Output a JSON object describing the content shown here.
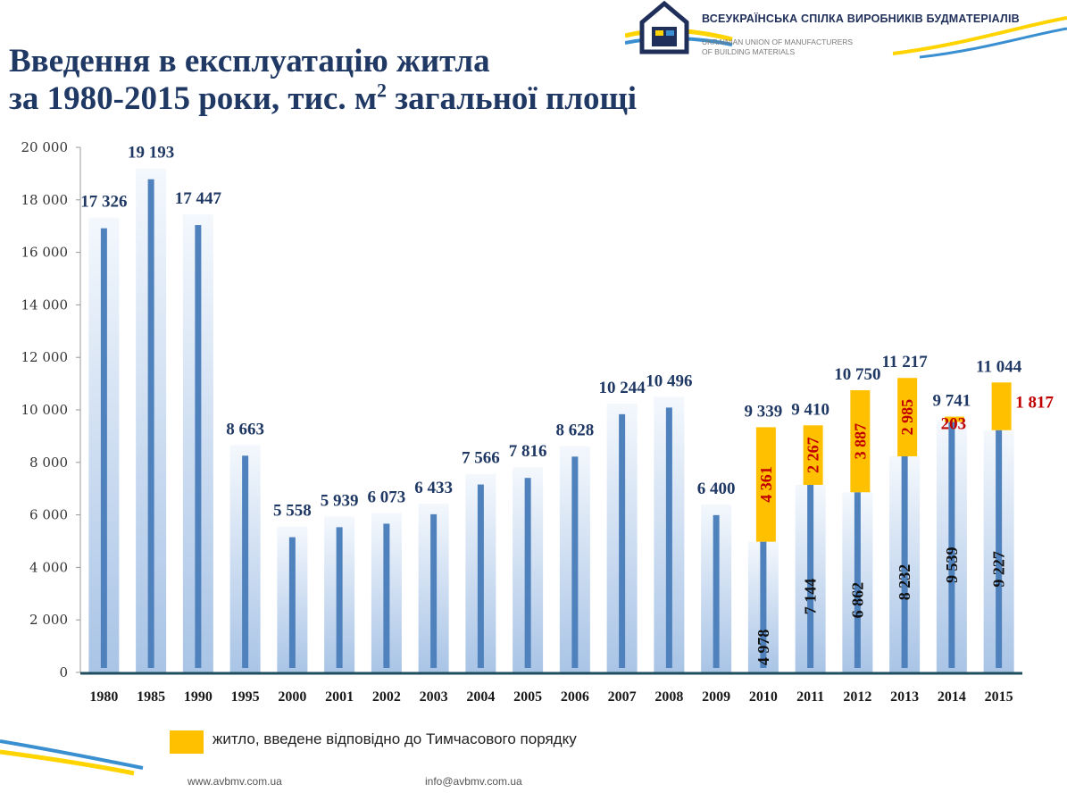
{
  "header": {
    "title_line1": "Введення в експлуатацію житла",
    "title_line2": "за 1980-2015 роки, тис. м",
    "title_sup": "2",
    "title_line2_tail": " загальної площі",
    "org_name_ua": "ВСЕУКРАЇНСЬКА СПІЛКА ВИРОБНИКІВ БУДМАТЕРІАЛІВ",
    "org_name_en_1": "UKRAINIAN UNION OF MANUFACTURERS",
    "org_name_en_2": "OF BUILDING MATERIALS"
  },
  "legend": {
    "label": "житло, введене відповідно до Тимчасового порядку"
  },
  "footer": {
    "website": "www.avbmv.com.ua",
    "email": "info@avbmv.com.ua"
  },
  "colors": {
    "title": "#1f3864",
    "bar_dark": "#4f81bd",
    "bar_light": "#c6d9f1",
    "highlight": "#ffc000",
    "red_label": "#c00000",
    "axis": "#1f4e5e"
  },
  "chart_data": {
    "type": "bar",
    "categories": [
      "1980",
      "1985",
      "1990",
      "1995",
      "2000",
      "2001",
      "2002",
      "2003",
      "2004",
      "2005",
      "2006",
      "2007",
      "2008",
      "2009",
      "2010",
      "2011",
      "2012",
      "2013",
      "2014",
      "2015"
    ],
    "series": [
      {
        "values": [
          17326,
          19193,
          17447,
          8663,
          5558,
          5939,
          6073,
          6433,
          7566,
          7816,
          8628,
          10244,
          10496,
          6400,
          4978,
          7144,
          6862,
          8232,
          9539,
          9227
        ]
      },
      {
        "name": "житло, введене відповідно до Тимчасового порядку",
        "values": [
          null,
          null,
          null,
          null,
          null,
          null,
          null,
          null,
          null,
          null,
          null,
          null,
          null,
          null,
          4361,
          2267,
          3887,
          2985,
          203,
          1817
        ]
      }
    ],
    "total_labels": [
      "17 326",
      "19 193",
      "17 447",
      "8 663",
      "5 558",
      "5 939",
      "6 073",
      "6 433",
      "7 566",
      "7 816",
      "8 628",
      "10 244",
      "10 496",
      "6 400",
      "9 339",
      "9 410",
      "10 750",
      "11 217",
      "9 741",
      "11 044"
    ],
    "base_labels": [
      "",
      "",
      "",
      "",
      "",
      "",
      "",
      "",
      "",
      "",
      "",
      "",
      "",
      "",
      "4 978",
      "7 144",
      "6 862",
      "8 232",
      "9 539",
      "9 227"
    ],
    "temp_labels": [
      "",
      "",
      "",
      "",
      "",
      "",
      "",
      "",
      "",
      "",
      "",
      "",
      "",
      "",
      "4 361",
      "2 267",
      "3 887",
      "2 985",
      "203",
      "1 817"
    ],
    "y_ticks": [
      "0",
      "2 000",
      "4 000",
      "6 000",
      "8 000",
      "10 000",
      "12 000",
      "14 000",
      "16 000",
      "18 000",
      "20 000"
    ],
    "ylim": [
      0,
      20000
    ],
    "grid": false,
    "legend_position": "bottom"
  }
}
